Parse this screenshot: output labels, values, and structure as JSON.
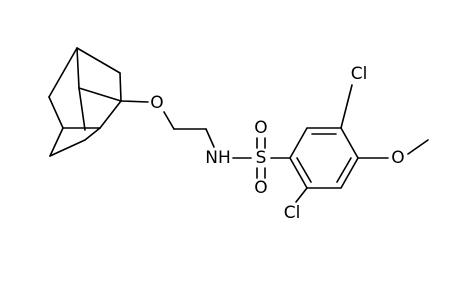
{
  "atoms": [
    "O",
    "NH",
    "S",
    "O",
    "O",
    "Cl",
    "O",
    "Cl"
  ]
}
